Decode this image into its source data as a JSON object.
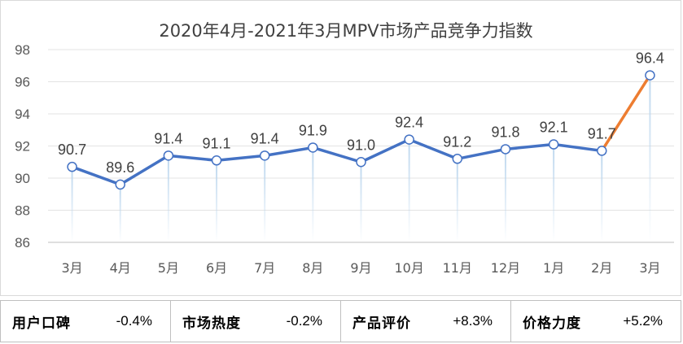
{
  "chart_data": {
    "type": "line",
    "title": "2020年4月-2021年3月MPV市场产品竞争力指数",
    "categories": [
      "3月",
      "4月",
      "5月",
      "6月",
      "7月",
      "8月",
      "9月",
      "10月",
      "11月",
      "12月",
      "1月",
      "2月",
      "3月"
    ],
    "values": [
      90.7,
      89.6,
      91.4,
      91.1,
      91.4,
      91.9,
      91.0,
      92.4,
      91.2,
      91.8,
      92.1,
      91.7,
      96.4
    ],
    "data_labels": [
      "90.7",
      "89.6",
      "91.4",
      "91.1",
      "91.4",
      "91.9",
      "91.0",
      "92.4",
      "91.2",
      "91.8",
      "92.1",
      "91.7",
      "96.4"
    ],
    "ylim": [
      86,
      98
    ],
    "yticks": [
      "86",
      "88",
      "90",
      "92",
      "94",
      "96",
      "98"
    ],
    "grid": true,
    "colors": {
      "line": "#4472c4",
      "highlight": "#ed7d31",
      "marker_fill": "#ffffff",
      "drop": "#bdd7ee"
    }
  },
  "metrics": [
    {
      "label": "用户口碑",
      "value": "-0.4%"
    },
    {
      "label": "市场热度",
      "value": "-0.2%"
    },
    {
      "label": "产品评价",
      "value": "+8.3%"
    },
    {
      "label": "价格力度",
      "value": "+5.2%"
    }
  ]
}
